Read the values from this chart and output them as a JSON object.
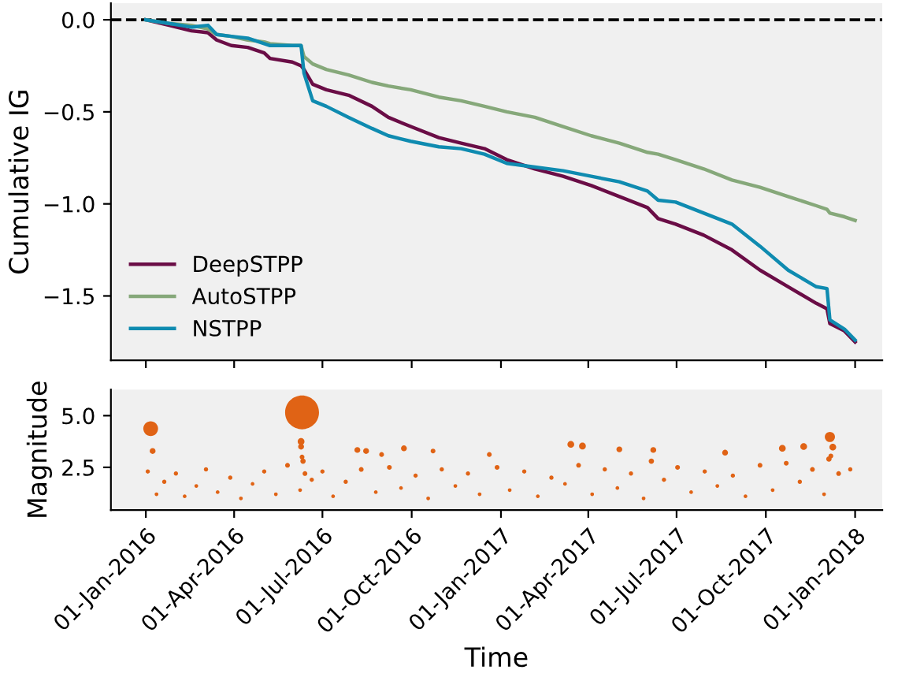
{
  "chart_data": [
    {
      "type": "line",
      "ylabel": "Cumulative IG",
      "xlim": [
        "2015-11-26",
        "2018-01-29"
      ],
      "ylim": [
        -1.85,
        0.09
      ],
      "yticks": [
        {
          "value": 0.0,
          "label": "0.0"
        },
        {
          "value": -0.5,
          "label": "−0.5"
        },
        {
          "value": -1.0,
          "label": "−1.0"
        },
        {
          "value": -1.5,
          "label": "−1.5"
        }
      ],
      "tick_labels": "y",
      "grid": false,
      "legend": "bottom left",
      "line_style": "solid",
      "marker": "none",
      "xticks": [
        {
          "value": "2016-01-01",
          "label": null
        },
        {
          "value": "2016-04-01",
          "label": null
        },
        {
          "value": "2016-07-01",
          "label": null
        },
        {
          "value": "2016-10-01",
          "label": null
        },
        {
          "value": "2017-01-01",
          "label": null
        },
        {
          "value": "2017-04-01",
          "label": null
        },
        {
          "value": "2017-07-01",
          "label": null
        },
        {
          "value": "2017-10-01",
          "label": null
        },
        {
          "value": "2018-01-01",
          "label": null
        }
      ],
      "ref_lines": [
        {
          "axis": "y",
          "value": 0,
          "color": "#000000",
          "line_style": "dashed"
        }
      ],
      "x": [
        "2016-01-01",
        "2016-01-25",
        "2016-02-17",
        "2016-03-05",
        "2016-03-14",
        "2016-03-29",
        "2016-04-15",
        "2016-05-02",
        "2016-05-08",
        "2016-05-31",
        "2016-06-09",
        "2016-06-12",
        "2016-06-21",
        "2016-07-05",
        "2016-07-28",
        "2016-08-21",
        "2016-09-07",
        "2016-09-30",
        "2016-10-29",
        "2016-11-21",
        "2016-12-15",
        "2017-01-07",
        "2017-02-05",
        "2017-03-06",
        "2017-04-04",
        "2017-05-03",
        "2017-06-01",
        "2017-06-12",
        "2017-06-30",
        "2017-07-29",
        "2017-08-27",
        "2017-09-25",
        "2017-10-24",
        "2017-11-22",
        "2017-12-03",
        "2017-12-06",
        "2017-12-21",
        "2018-01-01"
      ],
      "series": [
        {
          "name": "DeepSTPP",
          "color": "#6a0d46",
          "values": [
            0,
            -0.03,
            -0.06,
            -0.07,
            -0.11,
            -0.14,
            -0.15,
            -0.18,
            -0.21,
            -0.23,
            -0.25,
            -0.27,
            -0.35,
            -0.38,
            -0.41,
            -0.47,
            -0.53,
            -0.58,
            -0.64,
            -0.67,
            -0.7,
            -0.76,
            -0.81,
            -0.85,
            -0.9,
            -0.96,
            -1.02,
            -1.08,
            -1.11,
            -1.17,
            -1.25,
            -1.36,
            -1.45,
            -1.54,
            -1.57,
            -1.65,
            -1.69,
            -1.75
          ]
        },
        {
          "name": "AutoSTPP",
          "color": "#86a87a",
          "values": [
            0,
            -0.02,
            -0.03,
            -0.05,
            -0.08,
            -0.09,
            -0.11,
            -0.12,
            -0.13,
            -0.14,
            -0.14,
            -0.2,
            -0.24,
            -0.27,
            -0.3,
            -0.34,
            -0.36,
            -0.38,
            -0.42,
            -0.44,
            -0.47,
            -0.5,
            -0.53,
            -0.58,
            -0.63,
            -0.67,
            -0.72,
            -0.73,
            -0.76,
            -0.81,
            -0.87,
            -0.91,
            -0.96,
            -1.01,
            -1.03,
            -1.05,
            -1.07,
            -1.09
          ]
        },
        {
          "name": "NSTPP",
          "color": "#0f8bb0",
          "values": [
            0,
            -0.02,
            -0.04,
            -0.03,
            -0.08,
            -0.09,
            -0.1,
            -0.13,
            -0.14,
            -0.14,
            -0.14,
            -0.29,
            -0.44,
            -0.47,
            -0.53,
            -0.59,
            -0.63,
            -0.66,
            -0.69,
            -0.7,
            -0.73,
            -0.78,
            -0.8,
            -0.82,
            -0.85,
            -0.88,
            -0.93,
            -0.98,
            -0.99,
            -1.05,
            -1.11,
            -1.23,
            -1.36,
            -1.45,
            -1.46,
            -1.63,
            -1.68,
            -1.74
          ]
        }
      ]
    },
    {
      "type": "bubble",
      "xlabel": "Time",
      "ylabel": "Magnitude",
      "xlim": [
        "2015-11-26",
        "2018-01-29"
      ],
      "ylim": [
        0.43,
        6.26
      ],
      "yticks": [
        {
          "value": 2.5,
          "label": "2.5"
        },
        {
          "value": 5.0,
          "label": "5.0"
        }
      ],
      "xticks": [
        {
          "value": "2016-01-01",
          "label": "01-Jan-2016"
        },
        {
          "value": "2016-04-01",
          "label": "01-Apr-2016"
        },
        {
          "value": "2016-07-01",
          "label": "01-Jul-2016"
        },
        {
          "value": "2016-10-01",
          "label": "01-Oct-2016"
        },
        {
          "value": "2017-01-01",
          "label": "01-Jan-2017"
        },
        {
          "value": "2017-04-01",
          "label": "01-Apr-2017"
        },
        {
          "value": "2017-07-01",
          "label": "01-Jul-2017"
        },
        {
          "value": "2017-10-01",
          "label": "01-Oct-2017"
        },
        {
          "value": "2018-01-01",
          "label": "01-Jan-2018"
        }
      ],
      "grid": false,
      "marker": "circle",
      "series": [
        {
          "color": "#e06315",
          "x": [
            "2016-01-06",
            "2016-01-08",
            "2016-06-10",
            "2016-06-09",
            "2016-06-09",
            "2016-06-10",
            "2016-08-06",
            "2016-08-15",
            "2016-08-31",
            "2016-09-23",
            "2016-10-23",
            "2016-12-20",
            "2017-03-14",
            "2017-03-26",
            "2017-05-03",
            "2017-06-07",
            "2017-08-20",
            "2017-10-18",
            "2017-11-09",
            "2017-12-06",
            "2017-12-09",
            "2017-12-07",
            "2016-01-03",
            "2016-01-12",
            "2016-01-20",
            "2016-02-01",
            "2016-02-10",
            "2016-02-22",
            "2016-03-03",
            "2016-03-15",
            "2016-03-28",
            "2016-04-08",
            "2016-04-20",
            "2016-05-02",
            "2016-05-14",
            "2016-05-26",
            "2016-06-08",
            "2016-06-11",
            "2016-06-13",
            "2016-06-20",
            "2016-07-01",
            "2016-07-12",
            "2016-07-25",
            "2016-08-10",
            "2016-08-25",
            "2016-09-08",
            "2016-09-20",
            "2016-10-05",
            "2016-10-18",
            "2016-11-01",
            "2016-11-15",
            "2016-11-28",
            "2016-12-10",
            "2016-12-28",
            "2017-01-10",
            "2017-01-25",
            "2017-02-08",
            "2017-02-22",
            "2017-03-08",
            "2017-03-22",
            "2017-04-05",
            "2017-04-18",
            "2017-05-01",
            "2017-05-15",
            "2017-05-28",
            "2017-06-05",
            "2017-06-18",
            "2017-07-02",
            "2017-07-16",
            "2017-07-30",
            "2017-08-12",
            "2017-08-28",
            "2017-09-10",
            "2017-09-25",
            "2017-10-08",
            "2017-10-22",
            "2017-11-05",
            "2017-11-18",
            "2017-11-30",
            "2017-12-05",
            "2017-12-15",
            "2017-12-27"
          ],
          "values": [
            4.37,
            3.29,
            5.16,
            3.75,
            3.5,
            3.0,
            3.34,
            3.29,
            3.12,
            3.42,
            3.29,
            3.12,
            3.61,
            3.53,
            3.37,
            3.34,
            3.21,
            3.42,
            3.51,
            3.97,
            3.48,
            3.05,
            2.3,
            1.2,
            1.8,
            2.2,
            1.1,
            1.6,
            2.4,
            1.3,
            2.0,
            1.0,
            1.7,
            2.3,
            1.2,
            2.6,
            1.4,
            2.8,
            2.2,
            1.9,
            2.3,
            1.1,
            1.8,
            2.4,
            1.3,
            2.5,
            1.5,
            2.1,
            1.0,
            2.4,
            1.6,
            2.2,
            1.2,
            2.5,
            1.4,
            2.3,
            1.1,
            2.0,
            1.7,
            2.6,
            1.2,
            2.4,
            1.5,
            2.2,
            1.0,
            2.8,
            1.9,
            2.5,
            1.3,
            2.3,
            1.6,
            2.1,
            1.1,
            2.6,
            1.4,
            2.7,
            1.8,
            2.4,
            1.2,
            2.9,
            2.2,
            2.4
          ],
          "sizes": [
            0.19,
            0.03,
            1,
            0.04,
            0.03,
            0.02,
            0.03,
            0.03,
            0.02,
            0.03,
            0.02,
            0.02,
            0.04,
            0.04,
            0.03,
            0.03,
            0.03,
            0.04,
            0.04,
            0.09,
            0.04,
            0.02,
            0.016,
            0.012,
            0.016,
            0.016,
            0.012,
            0.012,
            0.016,
            0.012,
            0.016,
            0.012,
            0.012,
            0.016,
            0.012,
            0.02,
            0.012,
            0.025,
            0.02,
            0.016,
            0.016,
            0.012,
            0.016,
            0.02,
            0.012,
            0.02,
            0.012,
            0.016,
            0.012,
            0.016,
            0.012,
            0.016,
            0.012,
            0.02,
            0.012,
            0.016,
            0.012,
            0.016,
            0.012,
            0.02,
            0.012,
            0.016,
            0.012,
            0.016,
            0.012,
            0.025,
            0.016,
            0.02,
            0.012,
            0.016,
            0.012,
            0.016,
            0.012,
            0.02,
            0.012,
            0.02,
            0.016,
            0.02,
            0.012,
            0.025,
            0.02,
            0.016
          ]
        }
      ]
    }
  ]
}
